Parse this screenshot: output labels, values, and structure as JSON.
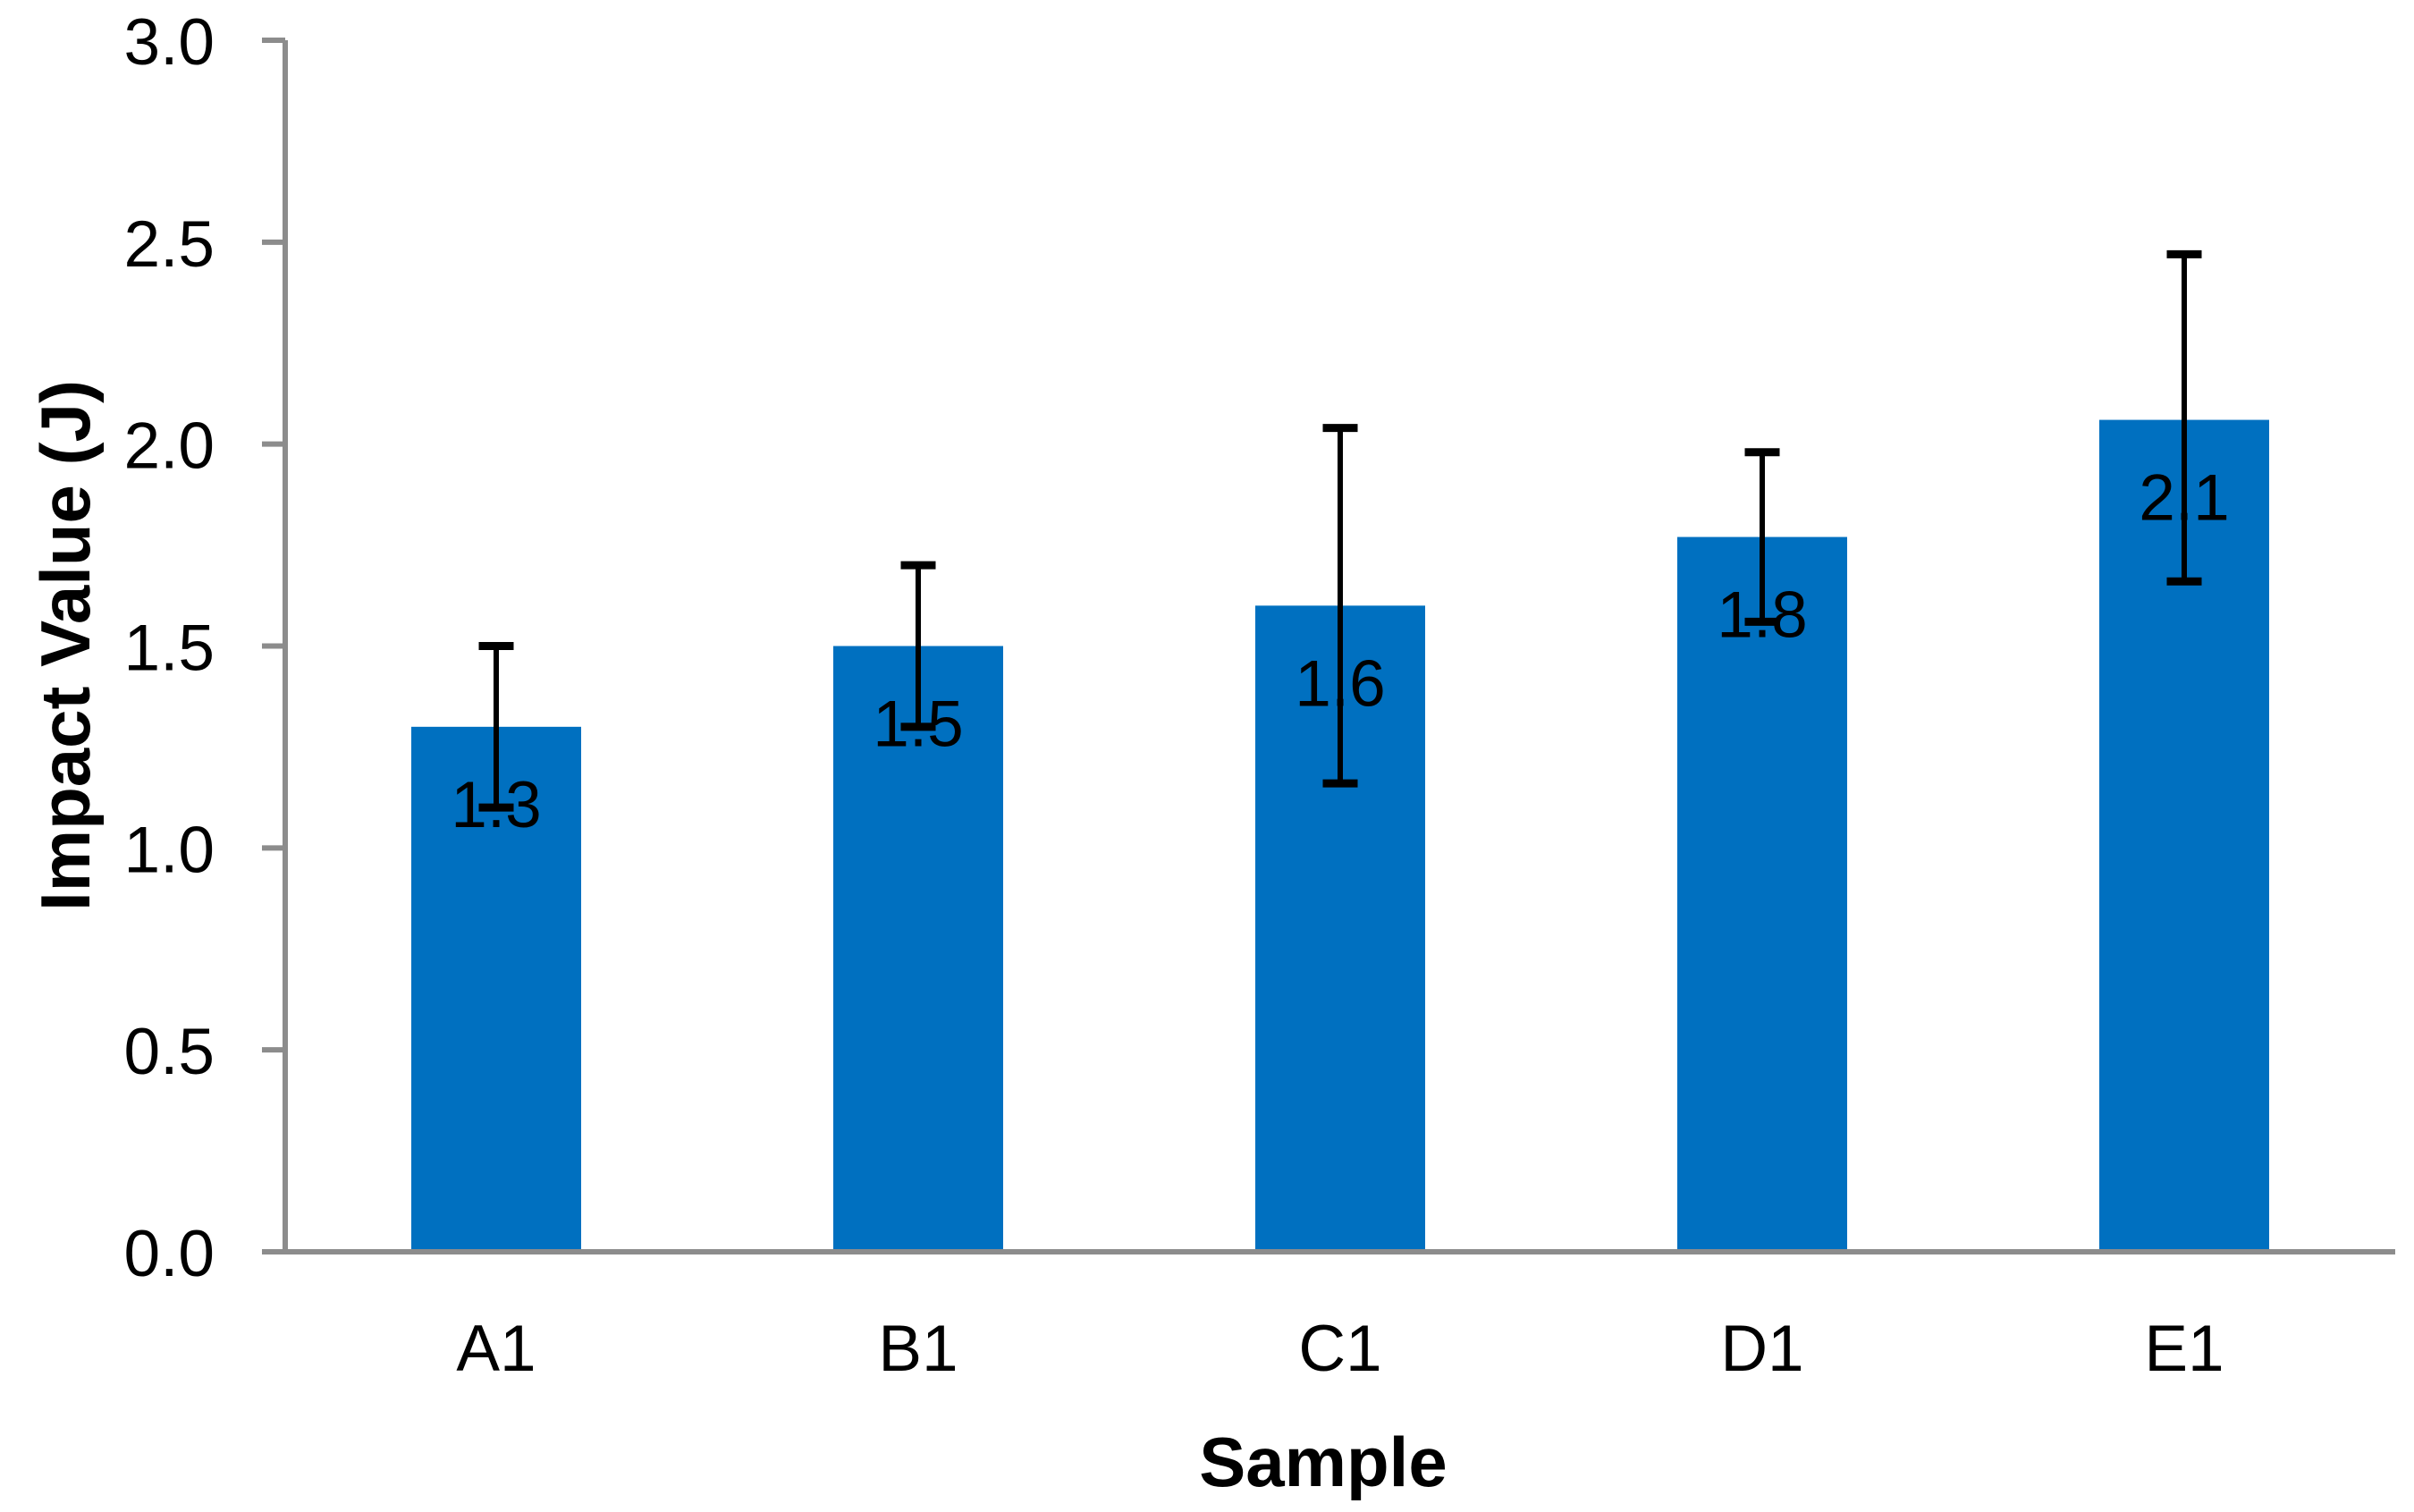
{
  "chart_data": {
    "type": "bar",
    "title": "",
    "xlabel": "Sample",
    "ylabel": "Impact Value (J)",
    "categories": [
      "A1",
      "B1",
      "C1",
      "D1",
      "E1"
    ],
    "series": [
      {
        "name": "Impact Value (J)",
        "values": [
          1.3,
          1.5,
          1.6,
          1.77,
          2.06
        ],
        "bar_labels": [
          "1.3",
          "1.5",
          "1.6",
          "1.8",
          "2.1"
        ],
        "error_minus": [
          0.2,
          0.2,
          0.44,
          0.21,
          0.4
        ],
        "error_plus": [
          0.2,
          0.2,
          0.44,
          0.21,
          0.41
        ]
      }
    ],
    "ylim": [
      0.0,
      3.0
    ],
    "ytick_step": 0.5,
    "ytick_labels": [
      "0.0",
      "0.5",
      "1.0",
      "1.5",
      "2.0",
      "2.5",
      "3.0"
    ],
    "grid": false,
    "legend": false,
    "colors": {
      "bar": "#0070C0",
      "axis": "#8C8C8C",
      "error_bar": "#000000",
      "text": "#000000",
      "background": "#FFFFFF"
    }
  }
}
